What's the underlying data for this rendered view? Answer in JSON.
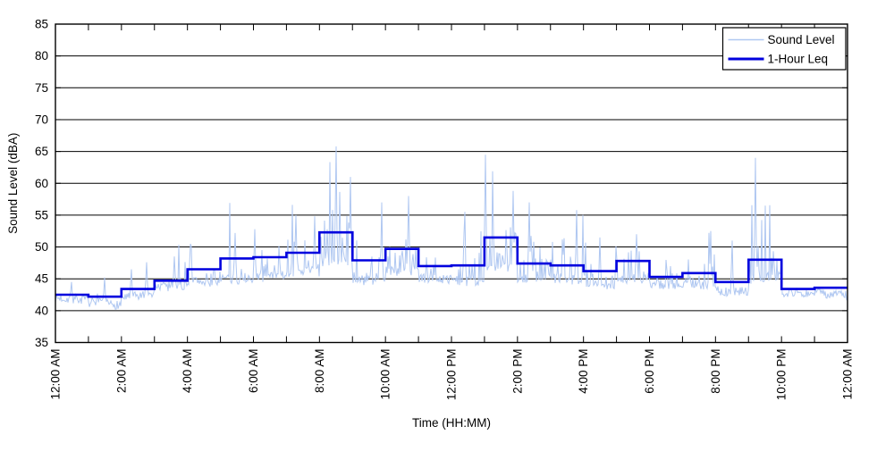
{
  "figure": {
    "background": "#ffffff",
    "axis_color": "#000000"
  },
  "chart_data": {
    "type": "line",
    "title": "",
    "xlabel": "Time (HH:MM)",
    "ylabel": "Sound Level (dBA)",
    "ylim": [
      35,
      85
    ],
    "yticks": [
      35,
      40,
      45,
      50,
      55,
      60,
      65,
      70,
      75,
      80,
      85
    ],
    "grid": "horizontal-only",
    "grid_color": "#000000",
    "xlim_hours": [
      0,
      24
    ],
    "xtick_hours": [
      0,
      2,
      4,
      6,
      8,
      10,
      12,
      14,
      16,
      18,
      20,
      22,
      24
    ],
    "xtick_labels": [
      "12:00 AM",
      "2:00 AM",
      "4:00 AM",
      "6:00 AM",
      "8:00 AM",
      "10:00 AM",
      "12:00 PM",
      "2:00 PM",
      "4:00 PM",
      "6:00 PM",
      "8:00 PM",
      "10:00 PM",
      "12:00 AM"
    ],
    "minor_ticks_every_hours": 1,
    "legend": {
      "position": "top-right",
      "entries": [
        {
          "label": "Sound Level",
          "color": "#AFC7F1",
          "line_width": 1.5
        },
        {
          "label": "1-Hour Leq",
          "color": "#0000DE",
          "line_width": 3
        }
      ]
    },
    "series": [
      {
        "name": "1-Hour Leq",
        "type": "step",
        "color": "#0000DE",
        "hour_start": [
          0,
          1,
          2,
          3,
          4,
          5,
          6,
          7,
          8,
          9,
          10,
          11,
          12,
          13,
          14,
          15,
          16,
          17,
          18,
          19,
          20,
          21,
          22,
          23
        ],
        "values_dBA": [
          42.5,
          42.2,
          43.4,
          44.7,
          46.5,
          48.2,
          48.4,
          49.1,
          52.3,
          47.9,
          49.7,
          47.0,
          47.1,
          51.5,
          47.4,
          47.1,
          46.2,
          47.8,
          45.3,
          45.9,
          44.5,
          48.0,
          43.4,
          43.6
        ]
      },
      {
        "name": "Sound Level",
        "type": "noisy-line",
        "color": "#AFC7F1",
        "description": "High-rate measured sound level; fluctuates around a baseline a few dB below the hourly Leq with frequent upward spikes, denser and taller during daytime hours.",
        "notable_peaks": [
          {
            "hour": 0.5,
            "dBA": 44.5
          },
          {
            "hour": 1.5,
            "dBA": 45.2
          },
          {
            "hour": 2.3,
            "dBA": 46.5
          },
          {
            "hour": 2.75,
            "dBA": 47.6
          },
          {
            "hour": 3.6,
            "dBA": 48.5
          },
          {
            "hour": 4.1,
            "dBA": 50.5
          },
          {
            "hour": 5.45,
            "dBA": 52.2
          },
          {
            "hour": 6.05,
            "dBA": 52.8
          },
          {
            "hour": 7.3,
            "dBA": 55.0
          },
          {
            "hour": 7.85,
            "dBA": 54.8
          },
          {
            "hour": 8.5,
            "dBA": 65.8
          },
          {
            "hour": 8.93,
            "dBA": 61.0
          },
          {
            "hour": 9.9,
            "dBA": 57.0
          },
          {
            "hour": 10.7,
            "dBA": 58.0
          },
          {
            "hour": 12.4,
            "dBA": 55.5
          },
          {
            "hour": 13.02,
            "dBA": 64.5
          },
          {
            "hour": 13.87,
            "dBA": 58.8
          },
          {
            "hour": 14.37,
            "dBA": 57.0
          },
          {
            "hour": 15.8,
            "dBA": 55.8
          },
          {
            "hour": 16.5,
            "dBA": 51.5
          },
          {
            "hour": 17.6,
            "dBA": 52.0
          },
          {
            "hour": 19.85,
            "dBA": 52.5
          },
          {
            "hour": 20.5,
            "dBA": 51.0
          },
          {
            "hour": 21.2,
            "dBA": 64.0
          }
        ]
      }
    ]
  }
}
